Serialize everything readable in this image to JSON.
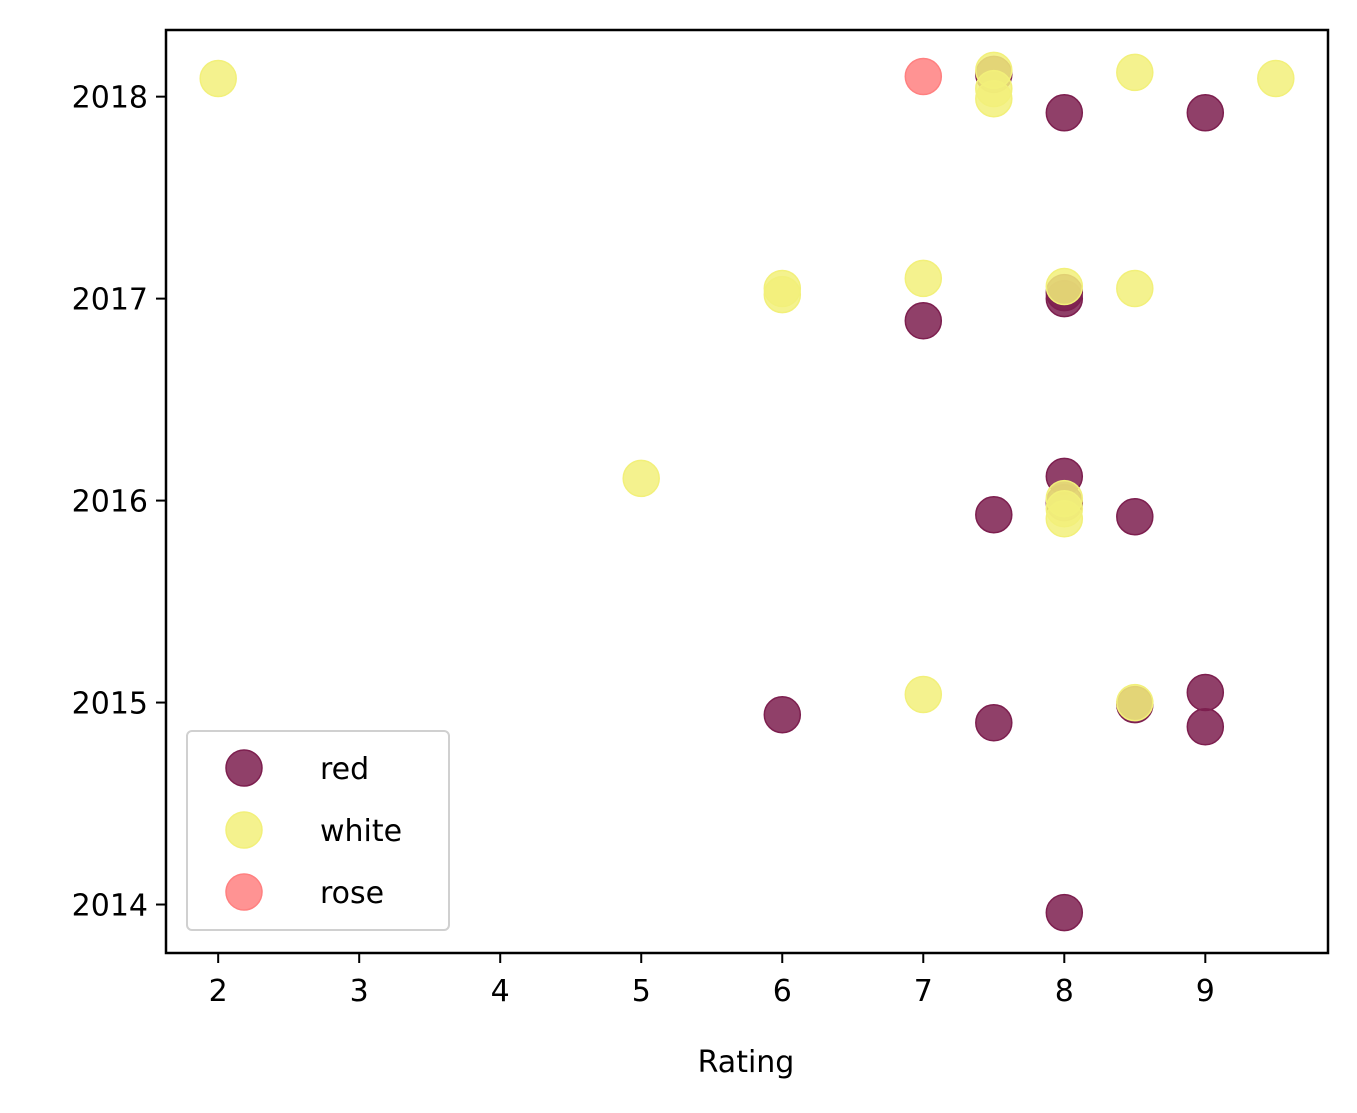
{
  "chart_data": {
    "type": "scatter",
    "title": "",
    "xlabel": "Rating",
    "ylabel": "",
    "xlim": [
      1.63,
      9.87
    ],
    "ylim": [
      2013.76,
      2018.33
    ],
    "xticks": [
      2,
      3,
      4,
      5,
      6,
      7,
      8,
      9
    ],
    "yticks": [
      2014,
      2015,
      2016,
      2017,
      2018
    ],
    "grid": false,
    "legend_position": "lower-left",
    "series": [
      {
        "name": "red",
        "color": "#7d1f4f",
        "points": [
          {
            "x": 7.5,
            "y": 2018.11
          },
          {
            "x": 8,
            "y": 2017.92
          },
          {
            "x": 9,
            "y": 2017.92
          },
          {
            "x": 7,
            "y": 2016.89
          },
          {
            "x": 8,
            "y": 2017.0
          },
          {
            "x": 8,
            "y": 2017.03
          },
          {
            "x": 8,
            "y": 2016.12
          },
          {
            "x": 7.5,
            "y": 2015.93
          },
          {
            "x": 8.5,
            "y": 2015.92
          },
          {
            "x": 8,
            "y": 2015.99
          },
          {
            "x": 6,
            "y": 2014.94
          },
          {
            "x": 7.5,
            "y": 2014.9
          },
          {
            "x": 8.5,
            "y": 2014.99
          },
          {
            "x": 9,
            "y": 2015.05
          },
          {
            "x": 9,
            "y": 2014.88
          },
          {
            "x": 8,
            "y": 2013.96
          }
        ]
      },
      {
        "name": "white",
        "color": "#f2f07a",
        "points": [
          {
            "x": 2,
            "y": 2018.09
          },
          {
            "x": 7.5,
            "y": 2018.13
          },
          {
            "x": 7.5,
            "y": 2018.04
          },
          {
            "x": 7.5,
            "y": 2017.99
          },
          {
            "x": 8.5,
            "y": 2018.12
          },
          {
            "x": 9.5,
            "y": 2018.09
          },
          {
            "x": 6,
            "y": 2017.05
          },
          {
            "x": 6,
            "y": 2017.02
          },
          {
            "x": 7,
            "y": 2017.1
          },
          {
            "x": 8,
            "y": 2017.06
          },
          {
            "x": 8.5,
            "y": 2017.05
          },
          {
            "x": 5,
            "y": 2016.11
          },
          {
            "x": 8,
            "y": 2016.01
          },
          {
            "x": 8,
            "y": 2015.96
          },
          {
            "x": 8,
            "y": 2015.91
          },
          {
            "x": 7,
            "y": 2015.04
          },
          {
            "x": 8.5,
            "y": 2015.0
          }
        ]
      },
      {
        "name": "rose",
        "color": "#ff8080",
        "points": [
          {
            "x": 7,
            "y": 2018.1
          }
        ]
      }
    ]
  }
}
